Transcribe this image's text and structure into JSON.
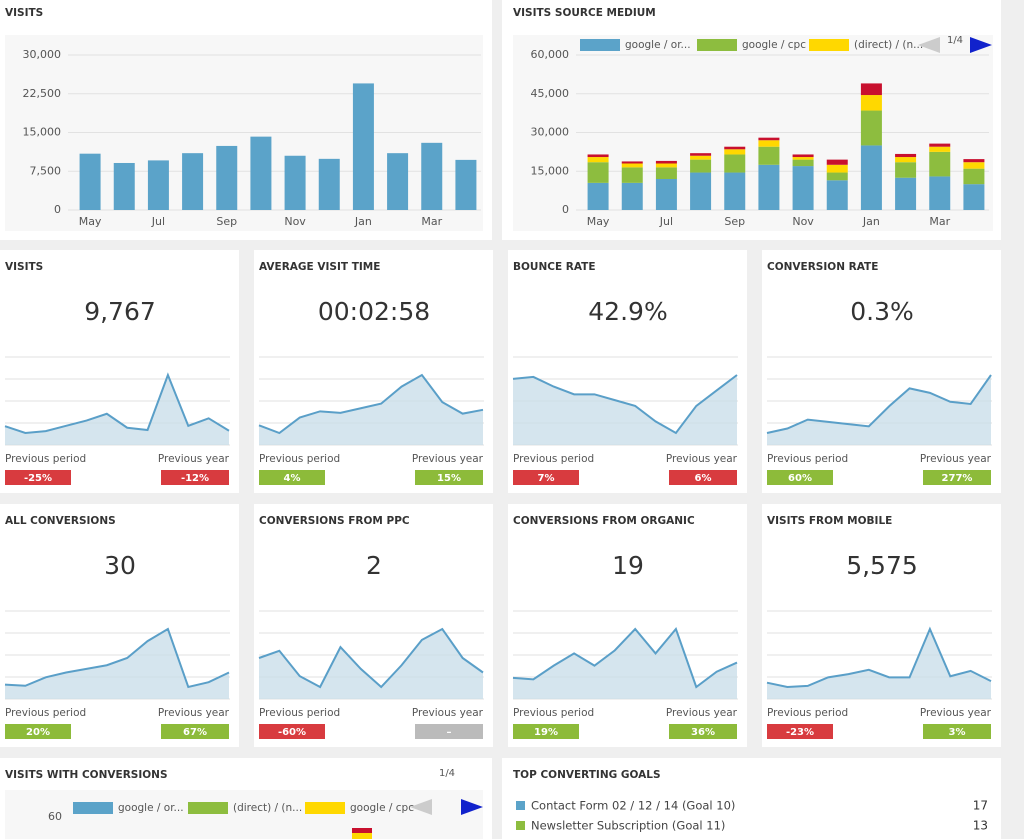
{
  "visits_chart": {
    "type": "bar",
    "title": "VISITS",
    "categories": [
      "May",
      null,
      "Jul",
      null,
      "Sep",
      null,
      "Nov",
      null,
      "Jan",
      null,
      "Mar",
      null
    ],
    "values": [
      10900,
      9100,
      9600,
      11000,
      12400,
      14200,
      10500,
      9900,
      24500,
      11000,
      13000,
      9700
    ],
    "color": "#5ba3c9",
    "ylim": [
      0,
      30000
    ],
    "yticks": [
      0,
      {
        "value": 7500,
        "label": "7,500"
      },
      {
        "value": 15000,
        "label": "15,000"
      },
      {
        "value": 22500,
        "label": "22,500"
      },
      {
        "value": 30000,
        "label": "30,000"
      }
    ],
    "grid": true
  },
  "source_chart": {
    "type": "stacked_bar",
    "title": "VISITS SOURCE MEDIUM",
    "categories": [
      "May",
      null,
      "Jul",
      null,
      "Sep",
      null,
      "Nov",
      null,
      "Jan",
      null,
      "Mar",
      null
    ],
    "series": [
      {
        "name": "google / or...",
        "color": "#5ba3c9",
        "values": [
          10500,
          10500,
          12000,
          14500,
          14500,
          17500,
          17000,
          11500,
          25000,
          12500,
          13000,
          10000
        ]
      },
      {
        "name": "google / cpc",
        "color": "#8dbd3f",
        "values": [
          8000,
          6000,
          4500,
          5000,
          7000,
          7000,
          2500,
          3000,
          13500,
          6000,
          9500,
          6000
        ]
      },
      {
        "name": "(direct) / (n...",
        "color": "#ffd800",
        "values": [
          2000,
          1500,
          1500,
          1500,
          2000,
          2500,
          1000,
          3000,
          6000,
          2000,
          2000,
          2500
        ]
      },
      {
        "color": "#c8102e",
        "values": [
          1000,
          800,
          1000,
          1000,
          1000,
          1000,
          1000,
          2000,
          4500,
          1200,
          1200,
          1200
        ]
      }
    ],
    "ylim": [
      0,
      60000
    ],
    "yticks": [
      0,
      {
        "value": 15000,
        "label": "15,000"
      },
      {
        "value": 30000,
        "label": "30,000"
      },
      {
        "value": 45000,
        "label": "45,000"
      },
      {
        "value": 60000,
        "label": "60,000"
      }
    ],
    "grid": true,
    "pager": "1/4"
  },
  "kpis": [
    {
      "title": "VISITS",
      "value": "9,767",
      "trend": [
        10900,
        9100,
        9600,
        11000,
        12400,
        14200,
        10500,
        9900,
        24500,
        11000,
        13000,
        9700
      ],
      "period_label": "Previous period",
      "period_change": "-25%",
      "period_color": "#d83b3f",
      "year_label": "Previous year",
      "year_change": "-12%",
      "year_color": "#d83b3f"
    },
    {
      "title": "AVERAGE VISIT TIME",
      "value": "00:02:58",
      "trend": [
        150,
        140,
        160,
        168,
        166,
        172,
        178,
        200,
        215,
        180,
        165,
        170
      ],
      "period_label": "Previous period",
      "period_change": "4%",
      "period_color": "#8dbb3a",
      "year_label": "Previous year",
      "year_change": "15%",
      "year_color": "#8dbb3a"
    },
    {
      "title": "BOUNCE RATE",
      "value": "42.9%",
      "trend": [
        44,
        44.5,
        42,
        40,
        40,
        38.5,
        37,
        33,
        30,
        37,
        41,
        45
      ],
      "period_label": "Previous period",
      "period_change": "7%",
      "period_color": "#d83b3f",
      "year_label": "Previous year",
      "year_change": "6%",
      "year_color": "#d83b3f"
    },
    {
      "title": "CONVERSION RATE",
      "value": "0.3%",
      "trend": [
        0.2,
        0.21,
        0.23,
        0.225,
        0.22,
        0.215,
        0.26,
        0.3,
        0.29,
        0.27,
        0.265,
        0.33
      ],
      "period_label": "Previous period",
      "period_change": "60%",
      "period_color": "#8dbb3a",
      "year_label": "Previous year",
      "year_change": "277%",
      "year_color": "#8dbb3a"
    },
    {
      "title": "ALL CONVERSIONS",
      "value": "30",
      "trend": [
        25,
        24.5,
        28,
        30,
        31.5,
        33,
        36,
        43,
        48,
        24,
        26,
        30
      ],
      "period_label": "Previous period",
      "period_change": "20%",
      "period_color": "#8dbb3a",
      "year_label": "Previous year",
      "year_change": "67%",
      "year_color": "#8dbb3a"
    },
    {
      "title": "CONVERSIONS FROM PPC",
      "value": "2",
      "trend": [
        4,
        5,
        1.5,
        0,
        5.5,
        2.5,
        0,
        3,
        6.5,
        8,
        4,
        2
      ],
      "period_label": "Previous period",
      "period_change": "-60%",
      "period_color": "#d83b3f",
      "year_label": "Previous year",
      "year_change": "–",
      "year_color": "#bbbbbb"
    },
    {
      "title": "CONVERSIONS FROM ORGANIC",
      "value": "19",
      "trend": [
        14,
        13.5,
        18,
        22,
        18,
        23,
        30,
        22,
        30,
        11,
        16,
        19
      ],
      "period_label": "Previous period",
      "period_change": "19%",
      "period_color": "#8dbb3a",
      "year_label": "Previous year",
      "year_change": "36%",
      "year_color": "#8dbb3a"
    },
    {
      "title": "VISITS FROM MOBILE",
      "value": "5,575",
      "trend": [
        5500,
        5300,
        5350,
        5750,
        5900,
        6100,
        5750,
        5750,
        8000,
        5800,
        6050,
        5575
      ],
      "period_label": "Previous period",
      "period_change": "-23%",
      "period_color": "#d83b3f",
      "year_label": "Previous year",
      "year_change": "3%",
      "year_color": "#8dbb3a"
    }
  ],
  "conversions_chart": {
    "title": "VISITS WITH CONVERSIONS",
    "series": [
      {
        "name": "google / or...",
        "color": "#5ba3c9"
      },
      {
        "name": "(direct) / (n...",
        "color": "#8dbd3f"
      },
      {
        "name": "google / cpc",
        "color": "#ffd800"
      }
    ],
    "yticks": [
      60
    ],
    "pager": "1/4"
  },
  "goals": {
    "title": "TOP CONVERTING GOALS",
    "rows": [
      {
        "name": "Contact Form 02 / 12 / 14 (Goal 10)",
        "count": "17",
        "color": "#5ba3c9"
      },
      {
        "name": "Newsletter Subscription (Goal 11)",
        "count": "13",
        "color": "#8dbd3f"
      }
    ]
  }
}
